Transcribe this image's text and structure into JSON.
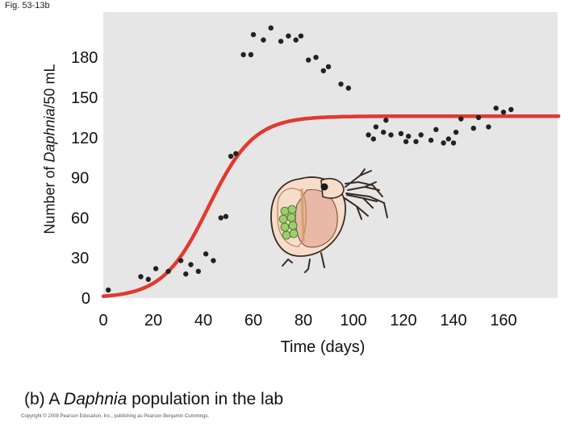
{
  "figure_label": "Fig. 53-13b",
  "caption": {
    "prefix": "(b) A ",
    "italic": "Daphnia",
    "suffix": " population in the lab"
  },
  "copyright": "Copyright © 2008 Pearson Education, Inc., publishing as Pearson Benjamin Cummings.",
  "chart_data": {
    "type": "scatter",
    "xlabel": "Time (days)",
    "ylabel_parts": [
      "Number of ",
      "Daphnia",
      "/50 mL"
    ],
    "xlim": [
      0,
      180
    ],
    "ylim": [
      0,
      210
    ],
    "x_ticks": [
      0,
      20,
      40,
      60,
      80,
      100,
      120,
      140,
      160
    ],
    "y_ticks": [
      0,
      30,
      60,
      90,
      120,
      150,
      180
    ],
    "grid": false,
    "plot_background": "#e6e6e6",
    "curve_color": "#e03a30",
    "point_color": "#222222",
    "series": [
      {
        "type": "scatter",
        "points": [
          [
            2,
            6
          ],
          [
            15,
            16
          ],
          [
            18,
            14
          ],
          [
            21,
            22
          ],
          [
            26,
            20
          ],
          [
            31,
            28
          ],
          [
            33,
            18
          ],
          [
            35,
            25
          ],
          [
            38,
            20
          ],
          [
            41,
            33
          ],
          [
            44,
            28
          ],
          [
            47,
            60
          ],
          [
            49,
            61
          ],
          [
            51,
            106
          ],
          [
            53,
            108
          ],
          [
            56,
            182
          ],
          [
            59,
            182
          ],
          [
            60,
            197
          ],
          [
            64,
            193
          ],
          [
            67,
            202
          ],
          [
            71,
            192
          ],
          [
            74,
            196
          ],
          [
            77,
            193
          ],
          [
            79,
            196
          ],
          [
            82,
            178
          ],
          [
            85,
            180
          ],
          [
            88,
            170
          ],
          [
            90,
            173
          ],
          [
            95,
            160
          ],
          [
            98,
            157
          ],
          [
            106,
            122
          ],
          [
            108,
            119
          ],
          [
            109,
            128
          ],
          [
            112,
            124
          ],
          [
            113,
            133
          ],
          [
            115,
            122
          ],
          [
            119,
            123
          ],
          [
            121,
            117
          ],
          [
            122,
            121
          ],
          [
            125,
            117
          ],
          [
            127,
            122
          ],
          [
            131,
            118
          ],
          [
            133,
            126
          ],
          [
            136,
            116
          ],
          [
            138,
            119
          ],
          [
            140,
            116
          ],
          [
            141,
            124
          ],
          [
            143,
            134
          ],
          [
            148,
            127
          ],
          [
            150,
            135
          ],
          [
            154,
            128
          ],
          [
            157,
            142
          ],
          [
            160,
            139
          ],
          [
            163,
            141
          ]
        ]
      },
      {
        "type": "logistic-curve",
        "K": 136,
        "r": 0.11,
        "t_mid": 42,
        "x_range": [
          0,
          182
        ]
      }
    ]
  },
  "illustration": {
    "name": "daphnia",
    "egg_color": "#9ccf6b",
    "body_color": "#f6dccb",
    "outline_color": "#3a2a20"
  }
}
